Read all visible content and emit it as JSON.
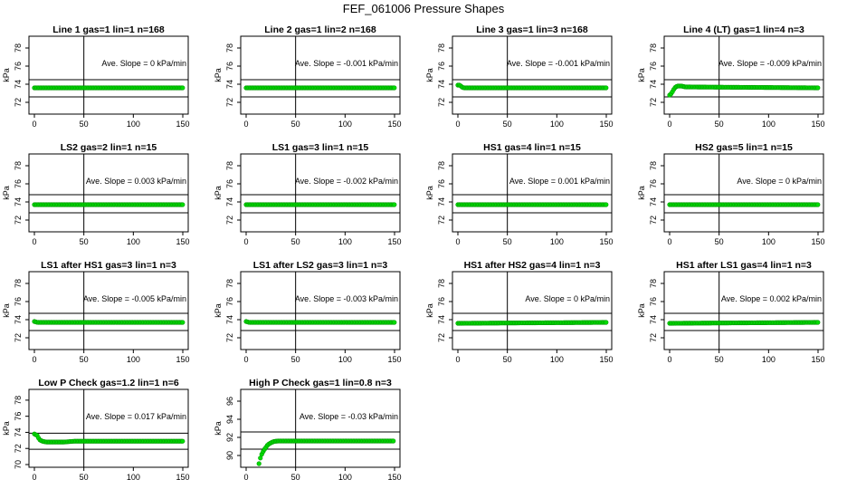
{
  "title": "FEF_061006  Pressure Shapes",
  "style": {
    "marker_color": "#00dd00",
    "marker_edge": "#009900",
    "line_color": "#000000"
  },
  "chart_data": [
    {
      "type": "scatter",
      "title": "Line 1 gas=1 lin=1 n=168",
      "ylabel": "kPa",
      "xlim": [
        0,
        150
      ],
      "ylim": [
        71,
        79
      ],
      "xticks": [
        0,
        50,
        100,
        150
      ],
      "yticks": [
        72,
        74,
        76,
        78
      ],
      "hlines": [
        72.6,
        74.5
      ],
      "vline": 50,
      "annotation": "Ave. Slope = 0 kPa/min",
      "series": [
        {
          "points": [
            [
              0,
              73.6
            ],
            [
              150,
              73.6
            ]
          ]
        }
      ]
    },
    {
      "type": "scatter",
      "title": "Line 2 gas=1 lin=2 n=168",
      "ylabel": "kPa",
      "xlim": [
        0,
        150
      ],
      "ylim": [
        71,
        79
      ],
      "xticks": [
        0,
        50,
        100,
        150
      ],
      "yticks": [
        72,
        74,
        76,
        78
      ],
      "hlines": [
        72.6,
        74.5
      ],
      "vline": 50,
      "annotation": "Ave. Slope = -0.001 kPa/min",
      "series": [
        {
          "points": [
            [
              0,
              73.6
            ],
            [
              150,
              73.6
            ]
          ]
        }
      ]
    },
    {
      "type": "scatter",
      "title": "Line 3 gas=1 lin=3 n=168",
      "ylabel": "kPa",
      "xlim": [
        0,
        150
      ],
      "ylim": [
        71,
        79
      ],
      "xticks": [
        0,
        50,
        100,
        150
      ],
      "yticks": [
        72,
        74,
        76,
        78
      ],
      "hlines": [
        72.6,
        74.5
      ],
      "vline": 50,
      "annotation": "Ave. Slope = -0.001 kPa/min",
      "series": [
        {
          "points": [
            [
              0,
              73.9
            ],
            [
              2,
              73.9
            ],
            [
              4,
              73.7
            ],
            [
              6,
              73.6
            ],
            [
              150,
              73.6
            ]
          ]
        }
      ]
    },
    {
      "type": "scatter",
      "title": "Line 4 (LT) gas=1 lin=4 n=3",
      "ylabel": "kPa",
      "xlim": [
        0,
        150
      ],
      "ylim": [
        71,
        79
      ],
      "xticks": [
        0,
        50,
        100,
        150
      ],
      "yticks": [
        72,
        74,
        76,
        78
      ],
      "hlines": [
        72.6,
        74.5
      ],
      "vline": 50,
      "annotation": "Ave. Slope = -0.009 kPa/min",
      "series": [
        {
          "points": [
            [
              0,
              72.8
            ],
            [
              2,
              73.0
            ],
            [
              4,
              73.4
            ],
            [
              6,
              73.7
            ],
            [
              8,
              73.8
            ],
            [
              12,
              73.8
            ],
            [
              16,
              73.7
            ],
            [
              150,
              73.6
            ]
          ]
        }
      ]
    },
    {
      "type": "scatter",
      "title": "LS2 gas=2 lin=1 n=15",
      "ylabel": "kPa",
      "xlim": [
        0,
        150
      ],
      "ylim": [
        71,
        79
      ],
      "xticks": [
        0,
        50,
        100,
        150
      ],
      "yticks": [
        72,
        74,
        76,
        78
      ],
      "hlines": [
        72.8,
        74.8
      ],
      "vline": 50,
      "annotation": "Ave. Slope = 0.003 kPa/min",
      "series": [
        {
          "points": [
            [
              0,
              73.7
            ],
            [
              150,
              73.7
            ]
          ]
        }
      ]
    },
    {
      "type": "scatter",
      "title": "LS1 gas=3 lin=1 n=15",
      "ylabel": "kPa",
      "xlim": [
        0,
        150
      ],
      "ylim": [
        71,
        79
      ],
      "xticks": [
        0,
        50,
        100,
        150
      ],
      "yticks": [
        72,
        74,
        76,
        78
      ],
      "hlines": [
        72.8,
        74.8
      ],
      "vline": 50,
      "annotation": "Ave. Slope = -0.002 kPa/min",
      "series": [
        {
          "points": [
            [
              0,
              73.7
            ],
            [
              150,
              73.7
            ]
          ]
        }
      ]
    },
    {
      "type": "scatter",
      "title": "HS1 gas=4 lin=1 n=15",
      "ylabel": "kPa",
      "xlim": [
        0,
        150
      ],
      "ylim": [
        71,
        79
      ],
      "xticks": [
        0,
        50,
        100,
        150
      ],
      "yticks": [
        72,
        74,
        76,
        78
      ],
      "hlines": [
        72.8,
        74.8
      ],
      "vline": 50,
      "annotation": "Ave. Slope = 0.001 kPa/min",
      "series": [
        {
          "points": [
            [
              0,
              73.7
            ],
            [
              150,
              73.7
            ]
          ]
        }
      ]
    },
    {
      "type": "scatter",
      "title": "HS2 gas=5 lin=1 n=15",
      "ylabel": "kPa",
      "xlim": [
        0,
        150
      ],
      "ylim": [
        71,
        79
      ],
      "xticks": [
        0,
        50,
        100,
        150
      ],
      "yticks": [
        72,
        74,
        76,
        78
      ],
      "hlines": [
        72.8,
        74.8
      ],
      "vline": 50,
      "annotation": "Ave. Slope = 0 kPa/min",
      "series": [
        {
          "points": [
            [
              0,
              73.7
            ],
            [
              150,
              73.7
            ]
          ]
        }
      ]
    },
    {
      "type": "scatter",
      "title": "LS1 after HS1 gas=3 lin=1 n=3",
      "ylabel": "kPa",
      "xlim": [
        0,
        150
      ],
      "ylim": [
        71,
        79
      ],
      "xticks": [
        0,
        50,
        100,
        150
      ],
      "yticks": [
        72,
        74,
        76,
        78
      ],
      "hlines": [
        72.8,
        74.7
      ],
      "vline": 50,
      "annotation": "Ave. Slope = -0.005 kPa/min",
      "series": [
        {
          "points": [
            [
              0,
              73.8
            ],
            [
              3,
              73.7
            ],
            [
              150,
              73.7
            ]
          ]
        }
      ]
    },
    {
      "type": "scatter",
      "title": "LS1 after LS2 gas=3 lin=1 n=3",
      "ylabel": "kPa",
      "xlim": [
        0,
        150
      ],
      "ylim": [
        71,
        79
      ],
      "xticks": [
        0,
        50,
        100,
        150
      ],
      "yticks": [
        72,
        74,
        76,
        78
      ],
      "hlines": [
        72.8,
        74.7
      ],
      "vline": 50,
      "annotation": "Ave. Slope = -0.003 kPa/min",
      "series": [
        {
          "points": [
            [
              0,
              73.8
            ],
            [
              3,
              73.7
            ],
            [
              150,
              73.7
            ]
          ]
        }
      ]
    },
    {
      "type": "scatter",
      "title": "HS1 after HS2 gas=4 lin=1 n=3",
      "ylabel": "kPa",
      "xlim": [
        0,
        150
      ],
      "ylim": [
        71,
        79
      ],
      "xticks": [
        0,
        50,
        100,
        150
      ],
      "yticks": [
        72,
        74,
        76,
        78
      ],
      "hlines": [
        72.8,
        74.7
      ],
      "vline": 50,
      "annotation": "Ave. Slope = 0 kPa/min",
      "series": [
        {
          "points": [
            [
              0,
              73.6
            ],
            [
              150,
              73.7
            ]
          ]
        }
      ]
    },
    {
      "type": "scatter",
      "title": "HS1 after LS1 gas=4 lin=1 n=3",
      "ylabel": "kPa",
      "xlim": [
        0,
        150
      ],
      "ylim": [
        71,
        79
      ],
      "xticks": [
        0,
        50,
        100,
        150
      ],
      "yticks": [
        72,
        74,
        76,
        78
      ],
      "hlines": [
        72.8,
        74.7
      ],
      "vline": 50,
      "annotation": "Ave. Slope = 0.002 kPa/min",
      "series": [
        {
          "points": [
            [
              0,
              73.6
            ],
            [
              150,
              73.7
            ]
          ]
        }
      ]
    },
    {
      "type": "scatter",
      "title": "Low P Check gas=1.2 lin=1 n=6",
      "ylabel": "kPa",
      "xlim": [
        0,
        150
      ],
      "ylim": [
        70,
        79
      ],
      "xticks": [
        0,
        50,
        100,
        150
      ],
      "yticks": [
        70,
        72,
        74,
        76,
        78
      ],
      "hlines": [
        71.9,
        73.9
      ],
      "vline": 50,
      "annotation": "Ave. Slope = 0.017 kPa/min",
      "series": [
        {
          "points": [
            [
              0,
              73.8
            ],
            [
              3,
              73.6
            ],
            [
              5,
              73.1
            ],
            [
              8,
              72.9
            ],
            [
              12,
              72.8
            ],
            [
              30,
              72.8
            ],
            [
              40,
              72.9
            ],
            [
              150,
              72.9
            ]
          ]
        }
      ]
    },
    {
      "type": "scatter",
      "title": "High P Check gas=1 lin=0.8 n=3",
      "ylabel": "kPa",
      "xlim": [
        0,
        150
      ],
      "ylim": [
        89,
        97
      ],
      "xticks": [
        0,
        50,
        100,
        150
      ],
      "yticks": [
        90,
        92,
        94,
        96
      ],
      "hlines": [
        90.7,
        92.6
      ],
      "vline": 50,
      "annotation": "Ave. Slope = -0.03 kPa/min",
      "series": [
        {
          "points": [
            [
              13,
              89.1
            ],
            [
              14,
              89.6
            ],
            [
              16,
              90.2
            ],
            [
              18,
              90.6
            ],
            [
              20,
              90.9
            ],
            [
              22,
              91.2
            ],
            [
              25,
              91.4
            ],
            [
              28,
              91.55
            ],
            [
              32,
              91.6
            ],
            [
              40,
              91.6
            ],
            [
              150,
              91.6
            ]
          ]
        }
      ]
    }
  ]
}
